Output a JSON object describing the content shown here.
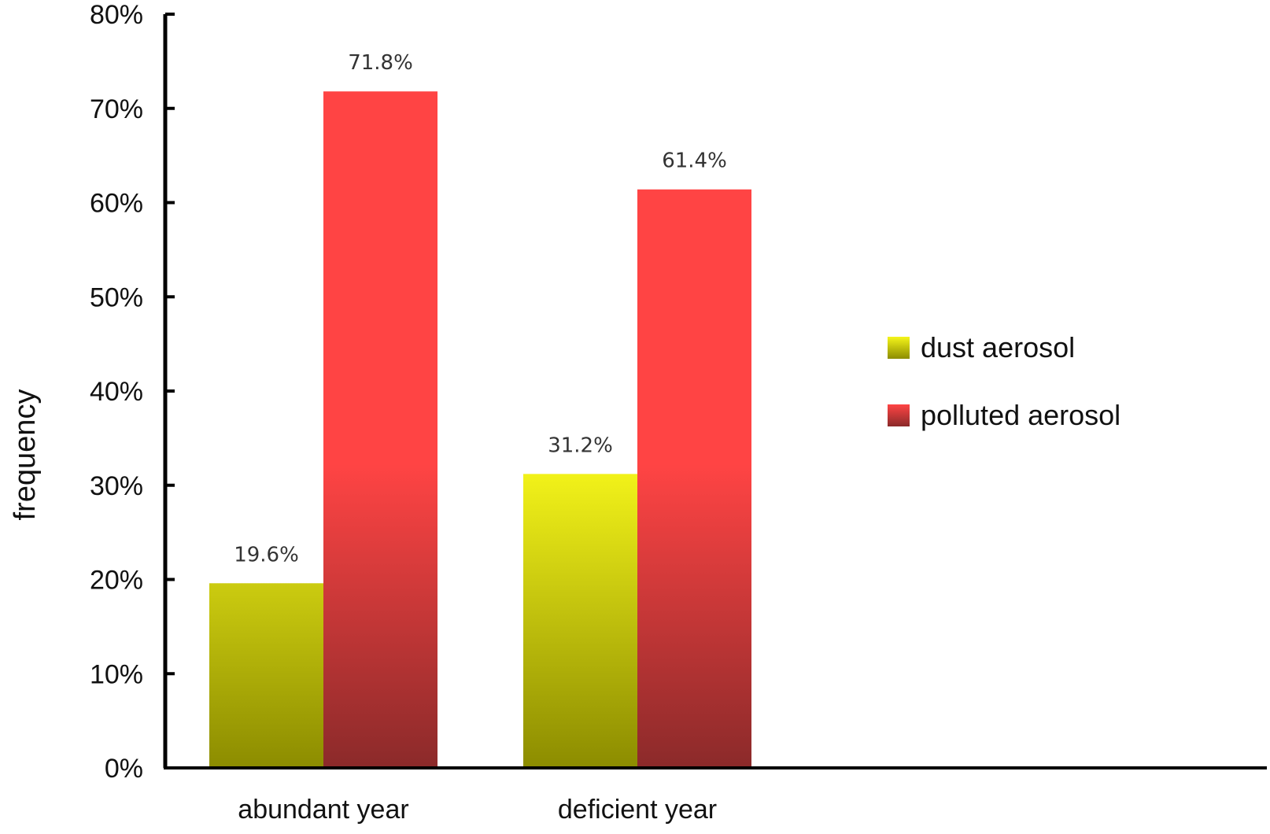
{
  "chart_data": {
    "type": "bar",
    "categories": [
      "abundant year",
      "deficient year"
    ],
    "series": [
      {
        "name": "dust aerosol",
        "values": [
          19.6,
          31.2
        ],
        "labels": [
          "19.6%",
          "31.2%"
        ],
        "color_top": "#f5f51a",
        "color_bottom": "#8c8c00"
      },
      {
        "name": "polluted aerosol",
        "values": [
          71.8,
          61.4
        ],
        "labels": [
          "71.8%",
          "61.4%"
        ],
        "color_top": "#ff4444",
        "color_bottom": "#8b2a2a"
      }
    ],
    "ylabel": "frequency",
    "xlabel": "",
    "ylim": [
      0,
      80
    ],
    "yticks": [
      0,
      10,
      20,
      30,
      40,
      50,
      60,
      70,
      80
    ],
    "ytick_labels": [
      "0%",
      "10%",
      "20%",
      "30%",
      "40%",
      "50%",
      "60%",
      "70%",
      "80%"
    ],
    "grid": false,
    "legend_position": "right"
  }
}
